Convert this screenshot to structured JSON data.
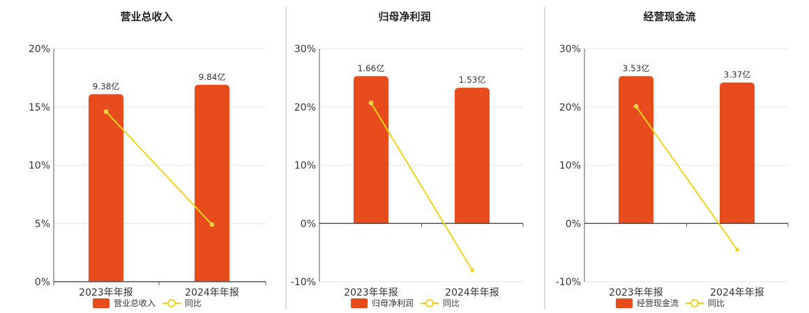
{
  "colors": {
    "bar": "#E84C1C",
    "line": "#F2D21A",
    "grid": "#E6E6E6",
    "axis": "#555555",
    "divider": "#BBBBBB"
  },
  "chart_data": [
    {
      "type": "bar",
      "title": "营业总收入",
      "categories": [
        "2023年年报",
        "2024年年报"
      ],
      "series": [
        {
          "name": "营业总收入",
          "kind": "bar",
          "values": [
            16.1,
            16.9
          ],
          "labels": [
            "9.38亿",
            "9.84亿"
          ]
        },
        {
          "name": "同比",
          "kind": "line",
          "values": [
            14.6,
            4.9
          ]
        }
      ],
      "yticks": [
        "0%",
        "5%",
        "10%",
        "15%",
        "20%"
      ],
      "ylim": [
        0,
        20
      ],
      "grid": true,
      "legend": "bottom"
    },
    {
      "type": "bar",
      "title": "归母净利润",
      "categories": [
        "2023年年报",
        "2024年年报"
      ],
      "series": [
        {
          "name": "归母净利润",
          "kind": "bar",
          "values": [
            25.3,
            23.3
          ],
          "labels": [
            "1.66亿",
            "1.53亿"
          ]
        },
        {
          "name": "同比",
          "kind": "line",
          "values": [
            20.7,
            -8.0
          ]
        }
      ],
      "yticks": [
        "-10%",
        "0%",
        "10%",
        "20%",
        "30%"
      ],
      "ylim": [
        -10,
        30
      ],
      "grid": true,
      "legend": "bottom"
    },
    {
      "type": "bar",
      "title": "经营现金流",
      "categories": [
        "2023年年报",
        "2024年年报"
      ],
      "series": [
        {
          "name": "经营现金流",
          "kind": "bar",
          "values": [
            25.3,
            24.2
          ],
          "labels": [
            "3.53亿",
            "3.37亿"
          ]
        },
        {
          "name": "同比",
          "kind": "line",
          "values": [
            20.1,
            -4.5
          ]
        }
      ],
      "yticks": [
        "-10%",
        "0%",
        "10%",
        "20%",
        "30%"
      ],
      "ylim": [
        -10,
        30
      ],
      "grid": true,
      "legend": "bottom"
    }
  ]
}
